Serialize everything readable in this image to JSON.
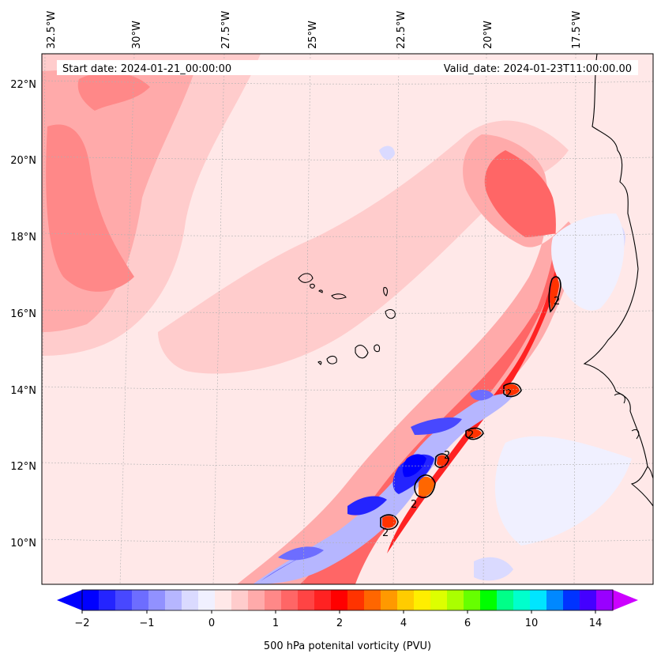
{
  "map": {
    "start_date": "Start date: 2024-01-21_00:00:00",
    "valid_date": "Valid_date: 2024-01-23T11:00:00.00",
    "lon_labels": [
      "32.5°W",
      "30°W",
      "27.5°W",
      "25°W",
      "22.5°W",
      "20°W",
      "17.5°W"
    ],
    "lat_labels": [
      "22°N",
      "20°N",
      "18°N",
      "16°N",
      "14°N",
      "12°N",
      "10°N"
    ],
    "contour_label": "2",
    "colors": {
      "background": "#ffe8e8",
      "coast": "#000000",
      "grid": "#b0b0b0"
    }
  },
  "colorbar": {
    "label": "500 hPa potenital vorticity (PVU)",
    "tick_labels": [
      "−2",
      "−1",
      "0",
      "1",
      "2",
      "4",
      "6",
      "10",
      "14"
    ],
    "colors": [
      "#0000ff",
      "#2424ff",
      "#4848ff",
      "#6d6dff",
      "#9191ff",
      "#b6b6ff",
      "#dadaff",
      "#f0f0ff",
      "#ffe8e8",
      "#ffcccc",
      "#ffaaaa",
      "#ff8888",
      "#ff6666",
      "#ff4444",
      "#ff2222",
      "#ff0000",
      "#ff3300",
      "#ff6600",
      "#ff9900",
      "#ffcc00",
      "#ffee00",
      "#ddff00",
      "#aaff00",
      "#66ff00",
      "#00ff00",
      "#00ff88",
      "#00ffcc",
      "#00e5ff",
      "#0088ff",
      "#0033ff",
      "#4400ff",
      "#9900ff"
    ],
    "extend_low": "#0000ff",
    "extend_high": "#cc00ff"
  }
}
